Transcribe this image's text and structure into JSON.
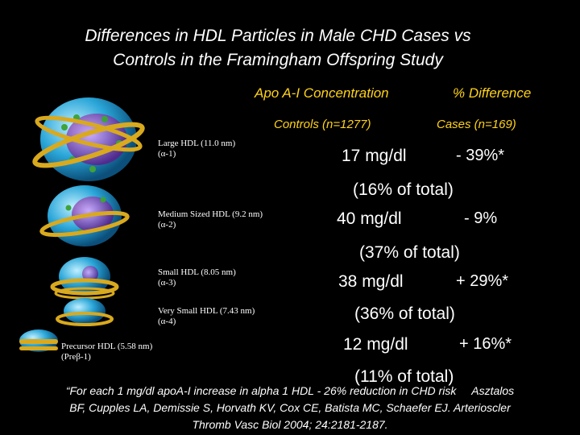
{
  "title_line1": "Differences in HDL Particles in Male CHD Cases vs",
  "title_line2": "Controls in the Framingham Offspring Study",
  "col_headers": {
    "apo": "Apo A-I Concentration",
    "pct": "% Difference",
    "controls": "Controls  (n=1277)",
    "cases": "Cases (n=169)"
  },
  "particles": [
    {
      "name": "Large HDL",
      "size": "(11.0 nm)",
      "subclass": "(α-1)"
    },
    {
      "name": "Medium Sized HDL",
      "size": "(9.2 nm)",
      "subclass": "(α-2)"
    },
    {
      "name": "Small HDL",
      "size": "(8.05 nm)",
      "subclass": "(α-3)"
    },
    {
      "name": "Very Small HDL",
      "size": "(7.43 nm)",
      "subclass": "(α-4)"
    },
    {
      "name": "Precursor HDL",
      "size": "(5.58 nm)",
      "subclass": "(Preβ-1)"
    }
  ],
  "rows": [
    {
      "conc": "17 mg/dl",
      "diff": "- 39%*",
      "share": "(16% of total)"
    },
    {
      "conc": "40 mg/dl",
      "diff": "- 9%",
      "share": "(37% of total)"
    },
    {
      "conc": "38 mg/dl",
      "diff": "+ 29%*",
      "share": "(36% of total)"
    },
    {
      "conc": "12 mg/dl",
      "diff": "+ 16%*",
      "share": "(11% of total)"
    }
  ],
  "footnote_line1": "“For each 1 mg/dl apoA-I increase in alpha 1 HDL - 26% reduction in CHD risk     Asztalos",
  "footnote_line2": "BF, Cupples LA, Demissie S, Horvath KV, Cox CE, Batista MC, Schaefer EJ. Arterioscler",
  "footnote_line3": "Thromb Vasc Biol 2004; 24:2181-2187.",
  "colors": {
    "background": "#000000",
    "header_yellow": "#ffd21a",
    "particle_cyan": "#2aa6d8",
    "particle_gold": "#d9a91e",
    "particle_green": "#3fa33a",
    "particle_purple": "#8a3fc2"
  }
}
